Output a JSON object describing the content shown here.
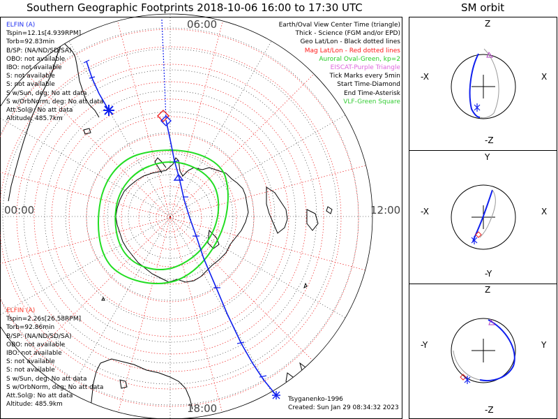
{
  "title": "Southern Geographic Footprints 2018-10-06 16:00 to 17:30 UTC",
  "orbit_title": "SM orbit",
  "clock": {
    "top": "06:00",
    "left": "00:00",
    "right": "12:00",
    "bottom": "18:00"
  },
  "spacecraft_a": {
    "name": "ELFIN (A)",
    "color": "#1f2ff0",
    "lines": [
      "Tspin=12.1s[4.939RPM]",
      "Torb=92.83min",
      "B/SP: (NA/ND/SD/SA)",
      "OBO: not available",
      "IBO: not available",
      "S: not available",
      "S: not available",
      "S w/Sun, deg: No att data",
      "S w/OrbNorm, deg: No att data",
      "Att.Sol@: No att data",
      "Altitude: 485.7km"
    ]
  },
  "spacecraft_b": {
    "name": "ELFIN (A)",
    "color": "#ff3a2a",
    "lines": [
      "Tspin=2.26s[26.58RPM]",
      "Torb=92.86min",
      "B/SP: (NA/ND/SD/SA)",
      "OBO: not available",
      "IBO: not available",
      "S: not available",
      "S: not available",
      "S w/Sun, deg: No att data",
      "S w/OrbNorm, deg: No att data",
      "Att.Sol@: No att data",
      "Altitude: 485.9km"
    ]
  },
  "legend": [
    {
      "text": "Earth/Oval View Center Time (triangle)",
      "color": "#000000"
    },
    {
      "text": "Thick - Science (FGM and/or EPD)",
      "color": "#000000"
    },
    {
      "text": "Geo Lat/Lon - Black dotted lines",
      "color": "#000000"
    },
    {
      "text": "Mag Lat/Lon - Red dotted lines",
      "color": "#ff1a1a"
    },
    {
      "text": "Auroral Oval-Green, kp=2",
      "color": "#22cc22"
    },
    {
      "text": "EISCAT-Purple Triangle",
      "color": "#dd66dd"
    },
    {
      "text": "Tick Marks every 5min",
      "color": "#000000"
    },
    {
      "text": "Start Time-Diamond",
      "color": "#000000"
    },
    {
      "text": "End Time-Asterisk",
      "color": "#000000"
    },
    {
      "text": "VLF-Green Square",
      "color": "#33cc33"
    }
  ],
  "footer": {
    "model": "Tsyganenko-1996",
    "created": "Created: Sun Jan 29 08:34:32 2023"
  },
  "panels": [
    {
      "top": "Z",
      "bottom": "-Z",
      "left": "-X",
      "right": "X"
    },
    {
      "top": "Y",
      "bottom": "-Y",
      "left": "-X",
      "right": "X"
    },
    {
      "top": "Z",
      "bottom": "-Z",
      "left": "-Y",
      "right": "Y"
    }
  ],
  "colors": {
    "oval": "#22dd22",
    "mag_grid": "#ee2222",
    "track": "#1020ee",
    "marker_red": "#ee2222"
  }
}
